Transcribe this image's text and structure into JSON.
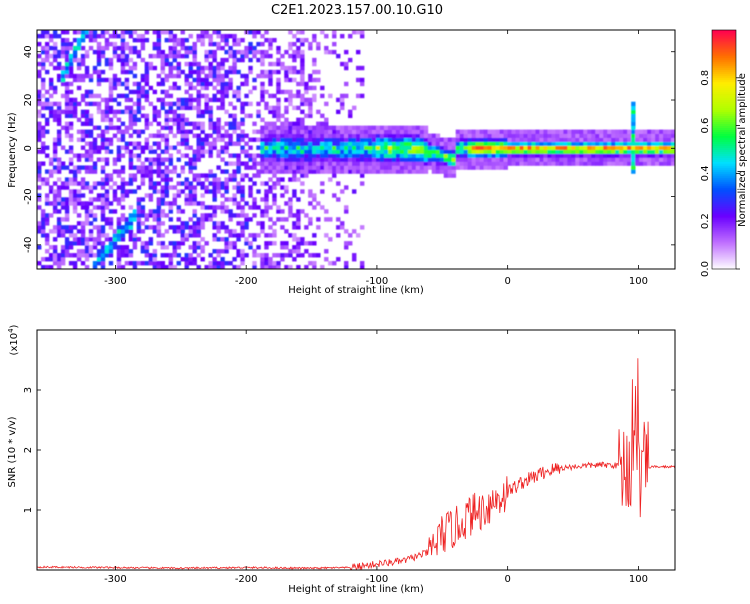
{
  "title": "C2E1.2023.157.00.10.G10",
  "chart_data": [
    {
      "type": "heatmap",
      "xlabel": "Height of straight line (km)",
      "ylabel": "Frequency (Hz)",
      "xlim": [
        -360,
        128
      ],
      "ylim": [
        -50,
        49
      ],
      "xticks": [
        -300,
        -200,
        -100,
        0,
        100
      ],
      "yticks": [
        -40,
        -20,
        0,
        20,
        40
      ],
      "colorbar": {
        "label": "Normalized spectral amplitude",
        "range": [
          0,
          1
        ],
        "ticks": [
          "0.0",
          "0.2",
          "0.4",
          "0.6",
          "0.8"
        ],
        "tick_values": [
          0,
          0.2,
          0.4,
          0.6,
          0.8
        ],
        "colormap": [
          "#ffffff",
          "#c070ff",
          "#6a00ff",
          "#0050ff",
          "#00e0ff",
          "#00ff40",
          "#b0ff00",
          "#ffee00",
          "#ff7000",
          "#ff0050"
        ]
      },
      "features": [
        {
          "name": "center-ridge",
          "x_range": [
            -190,
            128
          ],
          "frequency_hz": 0,
          "peak_amplitude": 0.95
        },
        {
          "name": "diagonal-streak-lower",
          "x": [
            -318,
            -285
          ],
          "y": [
            -50,
            -28
          ]
        },
        {
          "name": "diagonal-streak-upper",
          "x": [
            -342,
            -322
          ],
          "y": [
            29,
            49
          ]
        },
        {
          "name": "curved-dip",
          "x": [
            -72,
            -40
          ],
          "y": [
            0,
            -20
          ]
        },
        {
          "name": "spike-100",
          "x": 96,
          "y": [
            -10,
            20
          ]
        }
      ]
    },
    {
      "type": "line",
      "xlabel": "Height of straight line (km)",
      "ylabel": "SNR (10 * v/v)",
      "y_multiplier": "(x10",
      "y_multiplier_exp": "4",
      "y_multiplier_close": ")",
      "xlim": [
        -360,
        128
      ],
      "ylim": [
        0,
        4
      ],
      "xticks": [
        -300,
        -200,
        -100,
        0,
        100
      ],
      "yticks": [
        1,
        2,
        3
      ],
      "series": [
        {
          "color": "#ee2222",
          "x": [
            -360,
            -300,
            -250,
            -200,
            -150,
            -120,
            -100,
            -80,
            -60,
            -50,
            -40,
            -30,
            -20,
            -10,
            0,
            10,
            20,
            30,
            40,
            50,
            60,
            70,
            80,
            90,
            95,
            100,
            105,
            110,
            128
          ],
          "y": [
            0.05,
            0.04,
            0.03,
            0.04,
            0.03,
            0.04,
            0.1,
            0.15,
            0.3,
            0.6,
            0.7,
            0.9,
            1.0,
            1.15,
            1.3,
            1.45,
            1.55,
            1.65,
            1.7,
            1.72,
            1.74,
            1.75,
            1.75,
            1.72,
            1.7,
            1.5,
            1.7,
            1.72,
            1.72
          ]
        }
      ]
    }
  ]
}
